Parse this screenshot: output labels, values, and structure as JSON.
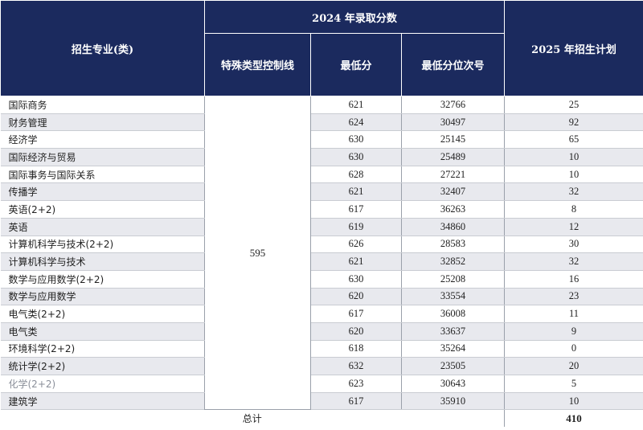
{
  "header": {
    "major_col": "招生专业(类)",
    "group_2024": "2024 年录取分数",
    "control_line": "特殊类型控制线",
    "min_score": "最低分",
    "min_rank": "最低分位次号",
    "plan_2025": "2025 年招生计划"
  },
  "control_line_value": "595",
  "rows": [
    {
      "major": "国际商务",
      "min_score": "621",
      "min_rank": "32766",
      "plan": "25"
    },
    {
      "major": "财务管理",
      "min_score": "624",
      "min_rank": "30497",
      "plan": "92"
    },
    {
      "major": "经济学",
      "min_score": "630",
      "min_rank": "25145",
      "plan": "65"
    },
    {
      "major": "国际经济与贸易",
      "min_score": "630",
      "min_rank": "25489",
      "plan": "10"
    },
    {
      "major": "国际事务与国际关系",
      "min_score": "628",
      "min_rank": "27221",
      "plan": "10"
    },
    {
      "major": "传播学",
      "min_score": "621",
      "min_rank": "32407",
      "plan": "32"
    },
    {
      "major": "英语(2+2)",
      "min_score": "617",
      "min_rank": "36263",
      "plan": "8"
    },
    {
      "major": "英语",
      "min_score": "619",
      "min_rank": "34860",
      "plan": "12"
    },
    {
      "major": "计算机科学与技术(2+2)",
      "min_score": "626",
      "min_rank": "28583",
      "plan": "30"
    },
    {
      "major": "计算机科学与技术",
      "min_score": "621",
      "min_rank": "32852",
      "plan": "32"
    },
    {
      "major": "数学与应用数学(2+2)",
      "min_score": "630",
      "min_rank": "25208",
      "plan": "16"
    },
    {
      "major": "数学与应用数学",
      "min_score": "620",
      "min_rank": "33554",
      "plan": "23"
    },
    {
      "major": "电气类(2+2)",
      "min_score": "617",
      "min_rank": "36008",
      "plan": "11"
    },
    {
      "major": "电气类",
      "min_score": "620",
      "min_rank": "33637",
      "plan": "9"
    },
    {
      "major": "环境科学(2+2)",
      "min_score": "618",
      "min_rank": "35264",
      "plan": "0"
    },
    {
      "major": "统计学(2+2)",
      "min_score": "632",
      "min_rank": "23505",
      "plan": "20"
    },
    {
      "major": "化学(2+2)",
      "min_score": "623",
      "min_rank": "30643",
      "plan": "5"
    },
    {
      "major": "建筑学",
      "min_score": "617",
      "min_rank": "35910",
      "plan": "10"
    }
  ],
  "total": {
    "label": "总计",
    "value": "410"
  }
}
